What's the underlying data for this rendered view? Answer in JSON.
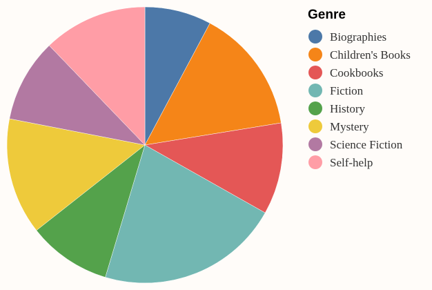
{
  "chart_data": {
    "type": "pie",
    "legend_title": "Genre",
    "legend_position": "right",
    "categories": [
      "Biographies",
      "Children's Books",
      "Cookbooks",
      "Fiction",
      "History",
      "Mystery",
      "Science Fiction",
      "Self-help"
    ],
    "values": [
      8,
      15,
      11,
      22,
      10,
      14,
      10,
      12.5
    ],
    "colors": [
      "#4c78a8",
      "#f58518",
      "#e45756",
      "#72b7b2",
      "#54a24b",
      "#eeca3b",
      "#b279a2",
      "#ff9da6"
    ]
  }
}
